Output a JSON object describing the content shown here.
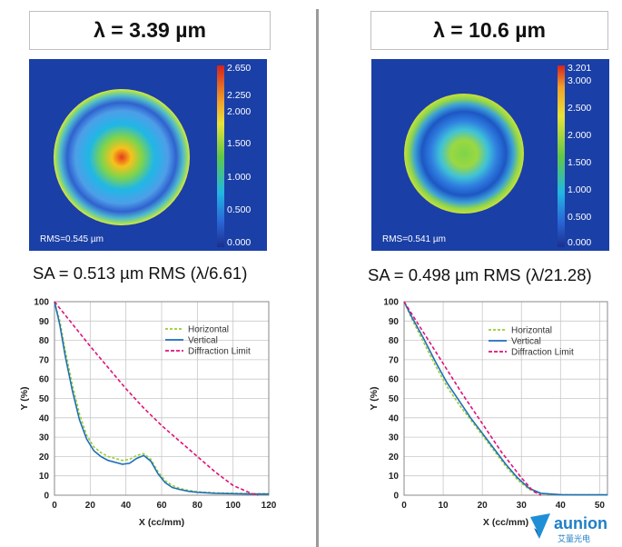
{
  "left": {
    "title": "λ = 3.39 µm",
    "map": {
      "rms_label": "RMS=0.545 µm",
      "colorbar_ticks": [
        "2.650",
        "2.250",
        "2.000",
        "1.500",
        "1.000",
        "0.500",
        "0.000"
      ]
    },
    "sa_label": "SA = 0.513 µm RMS (λ/6.61)"
  },
  "right": {
    "title": "λ = 10.6 µm",
    "map": {
      "rms_label": "RMS=0.541 µm",
      "colorbar_ticks": [
        "3.201",
        "3.000",
        "2.500",
        "2.000",
        "1.500",
        "1.000",
        "0.500",
        "0.000"
      ]
    },
    "sa_label": "SA = 0.498 µm RMS (λ/21.28)"
  },
  "logo": {
    "text": "aunion",
    "subtext": "艾量光电"
  },
  "chart_data": [
    {
      "type": "line",
      "xlabel": "X (cc/mm)",
      "ylabel": "Y (%)",
      "xlim": [
        0,
        120
      ],
      "ylim": [
        0,
        100
      ],
      "xticks": [
        0,
        20,
        40,
        60,
        80,
        100,
        120
      ],
      "yticks": [
        0,
        10,
        20,
        30,
        40,
        50,
        60,
        70,
        80,
        90,
        100
      ],
      "grid": true,
      "legend_position": "top-right",
      "series": [
        {
          "name": "Horizontal",
          "color": "#9acd32",
          "dash": true,
          "x": [
            0,
            3,
            6,
            10,
            14,
            18,
            22,
            26,
            30,
            34,
            38,
            42,
            46,
            50,
            54,
            58,
            62,
            66,
            70,
            75,
            80,
            90,
            100,
            110,
            120
          ],
          "y": [
            100,
            90,
            75,
            57,
            42,
            31,
            25,
            22,
            20,
            19,
            18,
            18.5,
            20.5,
            21.5,
            18.5,
            12,
            7.5,
            5,
            3.5,
            2.5,
            1.8,
            1.2,
            1,
            0.8,
            0.8
          ]
        },
        {
          "name": "Vertical",
          "color": "#1f6fb8",
          "dash": false,
          "x": [
            0,
            3,
            6,
            10,
            14,
            18,
            22,
            26,
            30,
            34,
            38,
            42,
            46,
            50,
            54,
            58,
            62,
            66,
            70,
            75,
            80,
            90,
            100,
            110,
            120
          ],
          "y": [
            100,
            88,
            72,
            54,
            39,
            29,
            23,
            20,
            18,
            17,
            16,
            16.5,
            19,
            20.5,
            17.5,
            11,
            6.5,
            4,
            3,
            2,
            1.5,
            1,
            0.8,
            0.6,
            0.6
          ]
        },
        {
          "name": "Diffraction Limit",
          "color": "#e0107a",
          "dash": true,
          "x": [
            0,
            10,
            20,
            30,
            40,
            50,
            60,
            70,
            80,
            90,
            100,
            110,
            114
          ],
          "y": [
            100,
            88.5,
            77,
            66,
            55,
            45,
            36,
            28,
            20,
            12,
            5,
            1,
            0
          ]
        }
      ]
    },
    {
      "type": "line",
      "xlabel": "X (cc/mm)",
      "ylabel": "Y (%)",
      "xlim": [
        0,
        52
      ],
      "ylim": [
        0,
        100
      ],
      "xticks": [
        0,
        10,
        20,
        30,
        40,
        50
      ],
      "yticks": [
        0,
        10,
        20,
        30,
        40,
        50,
        60,
        70,
        80,
        90,
        100
      ],
      "grid": true,
      "legend_position": "top-right",
      "series": [
        {
          "name": "Horizontal",
          "color": "#9acd32",
          "dash": true,
          "x": [
            0,
            2,
            5,
            8,
            11,
            14,
            17,
            20,
            23,
            26,
            29,
            32,
            35,
            40,
            45,
            50,
            52
          ],
          "y": [
            100,
            91,
            79,
            67,
            56,
            47,
            39,
            31,
            23,
            15,
            8,
            3,
            0.8,
            0.3,
            0.2,
            0.2,
            0.2
          ]
        },
        {
          "name": "Vertical",
          "color": "#1f6fb8",
          "dash": false,
          "x": [
            0,
            2,
            5,
            8,
            11,
            14,
            17,
            20,
            23,
            26,
            29,
            32,
            35,
            40,
            45,
            50,
            52
          ],
          "y": [
            100,
            92,
            81,
            69,
            58,
            49,
            40,
            32,
            24,
            16,
            9,
            3.5,
            1,
            0.3,
            0.2,
            0.2,
            0.2
          ]
        },
        {
          "name": "Diffraction Limit",
          "color": "#e0107a",
          "dash": true,
          "x": [
            0,
            5,
            10,
            15,
            20,
            25,
            30,
            33,
            35
          ],
          "y": [
            100,
            84,
            68,
            52,
            37,
            22,
            9,
            2,
            0
          ]
        }
      ]
    }
  ]
}
